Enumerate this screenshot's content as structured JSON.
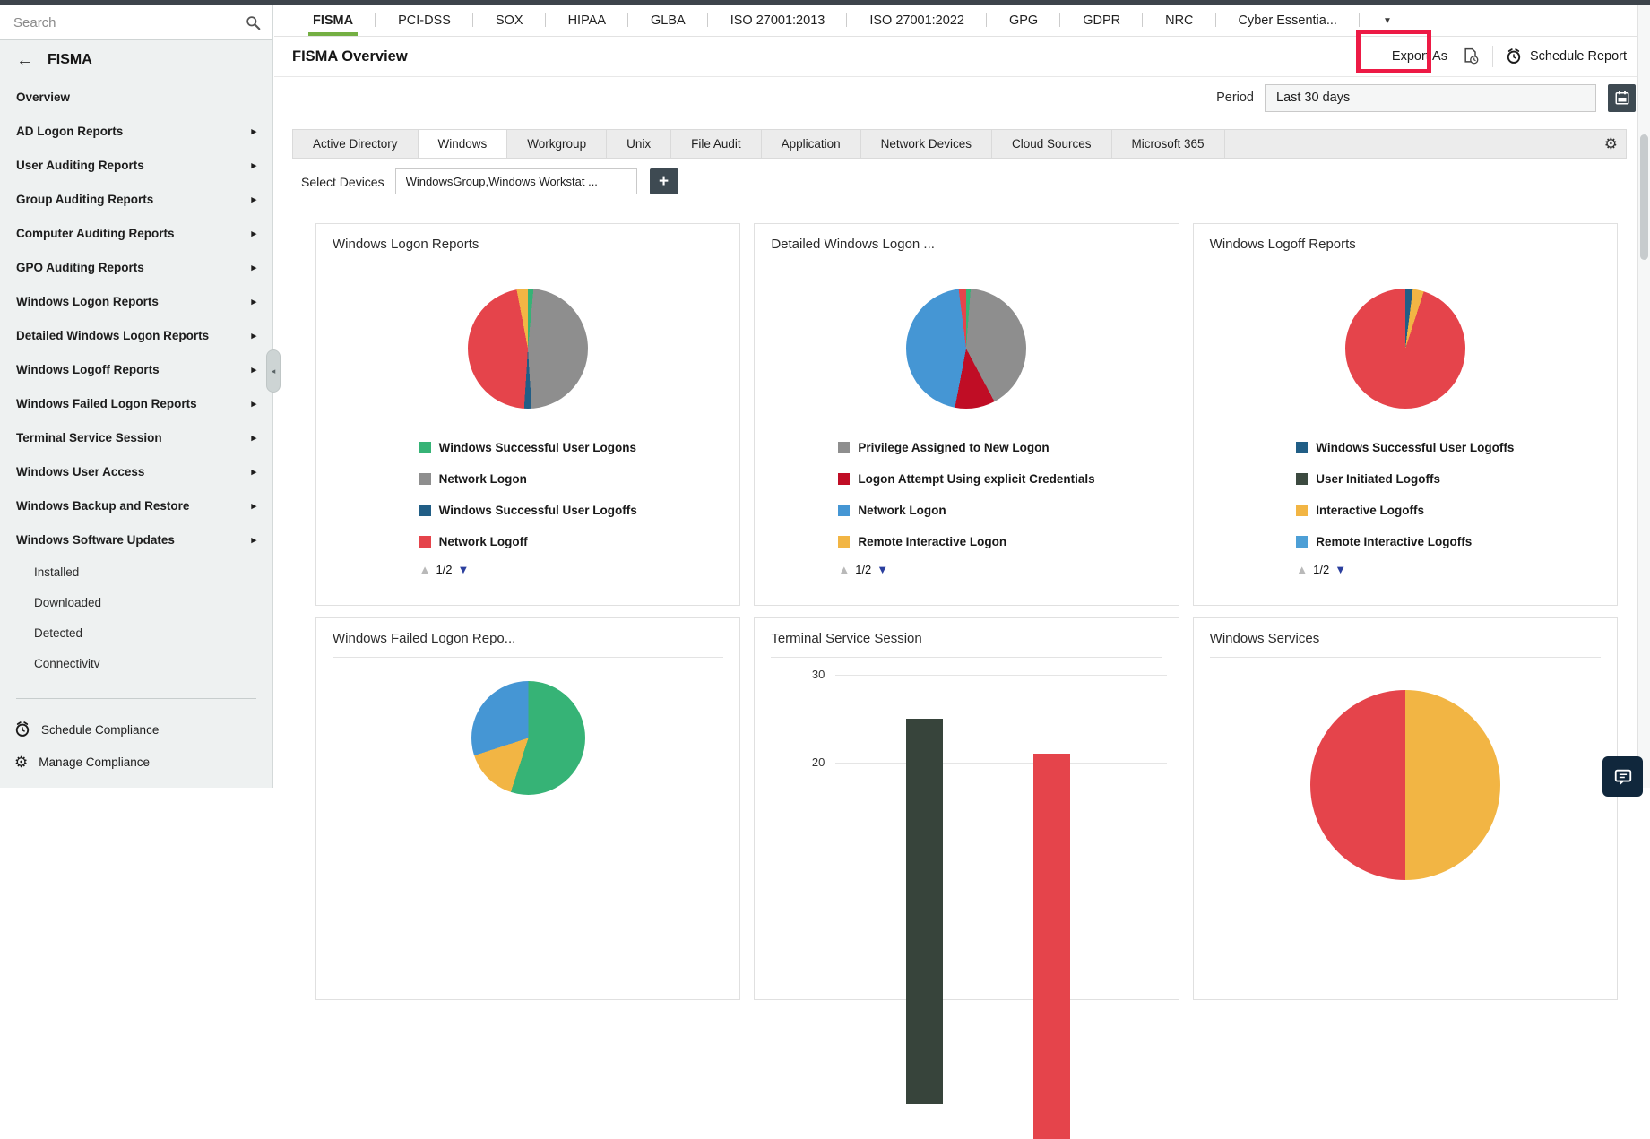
{
  "icons": {
    "back": "←",
    "arrow_right": "▸",
    "caret_down": "▼",
    "pager_up": "▲",
    "pager_down": "▼",
    "plus": "+",
    "gear": "⚙",
    "collapse": "◂"
  },
  "colors": {
    "accent_green": "#74af43",
    "highlight_red": "#ed1a45",
    "dark_button": "#3e4a52"
  },
  "sidebar": {
    "search_placeholder": "Search",
    "back_label": "FISMA",
    "items": [
      {
        "label": "Overview",
        "arrow": false
      },
      {
        "label": "AD Logon Reports",
        "arrow": true
      },
      {
        "label": "User Auditing Reports",
        "arrow": true
      },
      {
        "label": "Group Auditing Reports",
        "arrow": true
      },
      {
        "label": "Computer Auditing Reports",
        "arrow": true
      },
      {
        "label": "GPO Auditing Reports",
        "arrow": true
      },
      {
        "label": "Windows Logon Reports",
        "arrow": true
      },
      {
        "label": "Detailed Windows Logon Reports",
        "arrow": true
      },
      {
        "label": "Windows Logoff Reports",
        "arrow": true
      },
      {
        "label": "Windows Failed Logon Reports",
        "arrow": true
      },
      {
        "label": "Terminal Service Session",
        "arrow": true
      },
      {
        "label": "Windows User Access",
        "arrow": true
      },
      {
        "label": "Windows Backup and Restore",
        "arrow": true
      },
      {
        "label": "Windows Software Updates",
        "arrow": true
      },
      {
        "label": "Installed",
        "child": true
      },
      {
        "label": "Downloaded",
        "child": true
      },
      {
        "label": "Detected",
        "child": true
      },
      {
        "label": "Connectivitv",
        "child": true
      }
    ],
    "footer": [
      {
        "label": "Schedule Compliance"
      },
      {
        "label": "Manage Compliance"
      }
    ]
  },
  "top_tabs": {
    "items": [
      {
        "label": "FISMA",
        "active": true
      },
      {
        "label": "PCI-DSS"
      },
      {
        "label": "SOX"
      },
      {
        "label": "HIPAA"
      },
      {
        "label": "GLBA"
      },
      {
        "label": "ISO 27001:2013"
      },
      {
        "label": "ISO 27001:2022"
      },
      {
        "label": "GPG"
      },
      {
        "label": "GDPR"
      },
      {
        "label": "NRC"
      },
      {
        "label": "Cyber Essentia..."
      }
    ]
  },
  "header": {
    "title": "FISMA Overview",
    "export_label": "Export As",
    "schedule_label": "Schedule Report"
  },
  "period": {
    "label": "Period",
    "value": "Last 30 days"
  },
  "subtabs": {
    "items": [
      {
        "label": "Active Directory"
      },
      {
        "label": "Windows",
        "active": true
      },
      {
        "label": "Workgroup"
      },
      {
        "label": "Unix"
      },
      {
        "label": "File Audit"
      },
      {
        "label": "Application"
      },
      {
        "label": "Network Devices"
      },
      {
        "label": "Cloud Sources"
      },
      {
        "label": "Microsoft 365"
      }
    ]
  },
  "devices": {
    "label": "Select Devices",
    "value": "WindowsGroup,Windows Workstat ..."
  },
  "chart_data": [
    {
      "type": "pie",
      "title": "Windows Logon Reports",
      "slices": [
        {
          "label": "Windows Successful User Logons",
          "color": "#36b376",
          "value": 1.5
        },
        {
          "label": "Network Logon",
          "color": "#8e8e8e",
          "value": 47.5
        },
        {
          "label": "Windows Successful User Logoffs",
          "color": "#215e86",
          "value": 2
        },
        {
          "label": "Network Logoff",
          "color": "#e5444b",
          "value": 46
        },
        {
          "label": "",
          "color": "#f2b544",
          "value": 3
        }
      ],
      "legend": [
        {
          "label": "Windows Successful User Logons",
          "color": "#36b376"
        },
        {
          "label": "Network Logon",
          "color": "#8e8e8e"
        },
        {
          "label": "Windows Successful User Logoffs",
          "color": "#215e86"
        },
        {
          "label": "Network Logoff",
          "color": "#e5444b"
        }
      ],
      "pagination": "1/2"
    },
    {
      "type": "pie",
      "title": "Detailed Windows Logon ...",
      "slices": [
        {
          "label": "",
          "color": "#36b376",
          "value": 1.2
        },
        {
          "label": "Privilege Assigned to New Logon",
          "color": "#8e8e8e",
          "value": 41
        },
        {
          "label": "Logon Attempt Using explicit Credentials",
          "color": "#c00d25",
          "value": 10.8
        },
        {
          "label": "Network Logon",
          "color": "#4596d4",
          "value": 45
        },
        {
          "label": "",
          "color": "#e5444b",
          "value": 2
        }
      ],
      "legend": [
        {
          "label": "Privilege Assigned to New Logon",
          "color": "#8e8e8e"
        },
        {
          "label": "Logon Attempt Using explicit Credentials",
          "color": "#c00d25"
        },
        {
          "label": "Network Logon",
          "color": "#4596d4"
        },
        {
          "label": "Remote Interactive Logon",
          "color": "#f2b544"
        }
      ],
      "pagination": "1/2"
    },
    {
      "type": "pie",
      "title": "Windows Logoff Reports",
      "slices": [
        {
          "label": "Windows Successful User Logoffs",
          "color": "#215e86",
          "value": 2
        },
        {
          "label": "Interactive Logoffs",
          "color": "#f2b544",
          "value": 3
        },
        {
          "label": "",
          "color": "#e5444b",
          "value": 95
        }
      ],
      "legend": [
        {
          "label": "Windows Successful User Logoffs",
          "color": "#215e86"
        },
        {
          "label": "User Initiated Logoffs",
          "color": "#3c4a40"
        },
        {
          "label": "Interactive Logoffs",
          "color": "#f2b544"
        },
        {
          "label": "Remote Interactive Logoffs",
          "color": "#4d9fd6"
        }
      ],
      "pagination": "1/2"
    },
    {
      "type": "pie",
      "title": "Windows Failed Logon Repo...",
      "slices": [
        {
          "label": "",
          "color": "#36b376",
          "value": 55
        },
        {
          "label": "",
          "color": "#f2b544",
          "value": 15
        },
        {
          "label": "",
          "color": "#4596d4",
          "value": 30
        }
      ]
    },
    {
      "type": "bar",
      "title": "Terminal Service Session",
      "yticks": [
        "30",
        "20"
      ],
      "bars": [
        {
          "value": 25,
          "color": "#37443b"
        },
        {
          "value": 21,
          "color": "#e5444b"
        }
      ]
    },
    {
      "type": "pie",
      "title": "Windows Services",
      "slices": [
        {
          "label": "",
          "color": "#f2b544",
          "value": 50
        },
        {
          "label": "",
          "color": "#e5444b",
          "value": 50
        }
      ]
    }
  ]
}
